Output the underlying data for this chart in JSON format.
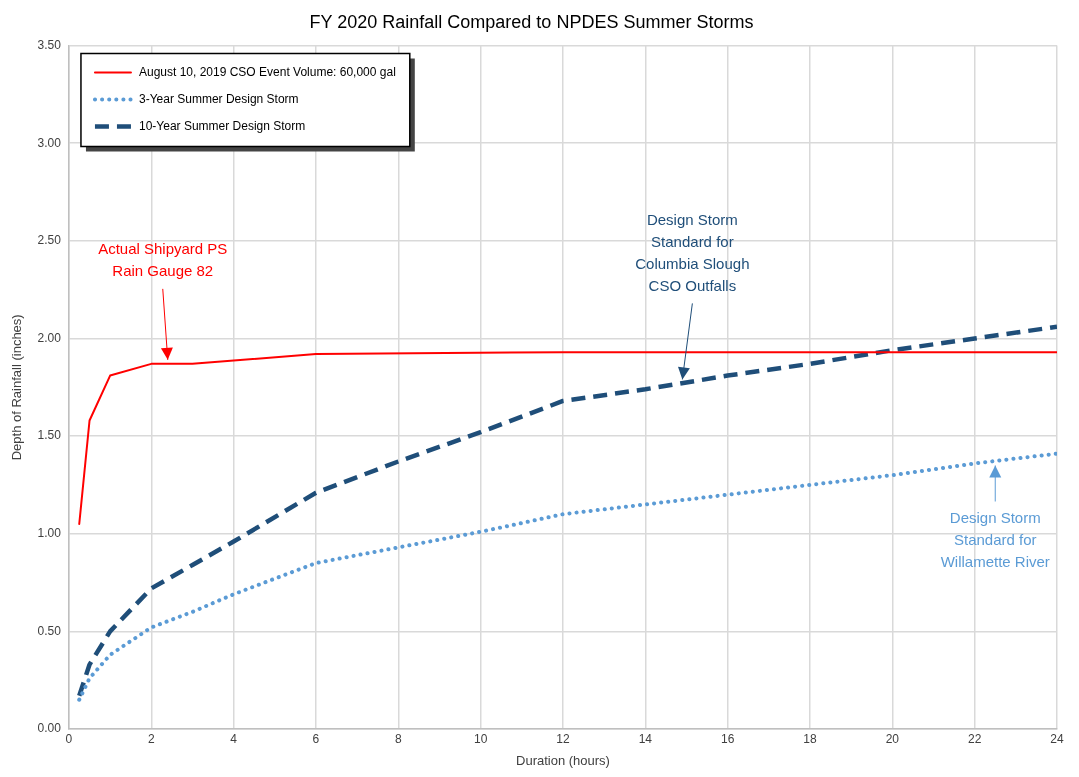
{
  "chart_data": {
    "type": "line",
    "title": "FY 2020 Rainfall Compared to NPDES Summer Storms",
    "xlabel": "Duration (hours)",
    "ylabel": "Depth of Rainfall (inches)",
    "xlim": [
      0,
      24
    ],
    "xticks": [
      0,
      2,
      4,
      6,
      8,
      10,
      12,
      14,
      16,
      18,
      20,
      22,
      24
    ],
    "ylim": [
      0,
      3.5
    ],
    "yticks": [
      {
        "value": 0,
        "label": "0.00"
      },
      {
        "value": 0.5,
        "label": "0.50"
      },
      {
        "value": 1,
        "label": "1.00"
      },
      {
        "value": 1.5,
        "label": "1.50"
      },
      {
        "value": 2,
        "label": "2.00"
      },
      {
        "value": 2.5,
        "label": "2.50"
      },
      {
        "value": 3,
        "label": "3.00"
      },
      {
        "value": 3.5,
        "label": "3.50"
      }
    ],
    "grid": true,
    "legend": "top left",
    "marker": "none",
    "series": [
      {
        "name": "August 10, 2019 CSO Event Volume: 60,000 gal",
        "color": "#ff0000",
        "line_style": "solid",
        "x": [
          0.25,
          0.5,
          1,
          2,
          3,
          6,
          12,
          24
        ],
        "values": [
          1.05,
          1.58,
          1.81,
          1.87,
          1.87,
          1.92,
          1.93,
          1.93
        ]
      },
      {
        "name": "3-Year Summer Design Storm",
        "color": "#5b9bd5",
        "line_style": "dotted",
        "x": [
          0.25,
          0.5,
          1,
          2,
          3,
          4,
          6,
          8,
          10,
          12,
          14,
          16,
          18,
          20,
          22,
          24
        ],
        "values": [
          0.15,
          0.26,
          0.38,
          0.52,
          0.6,
          0.69,
          0.85,
          0.93,
          1.01,
          1.1,
          1.15,
          1.2,
          1.25,
          1.3,
          1.36,
          1.41
        ]
      },
      {
        "name": "10-Year Summer Design Storm",
        "color": "#1f4e79",
        "line_style": "dashed",
        "x": [
          0.25,
          0.5,
          1,
          2,
          3,
          4,
          6,
          8,
          10,
          12,
          14,
          16,
          18,
          20,
          22,
          24
        ],
        "values": [
          0.17,
          0.33,
          0.5,
          0.72,
          0.84,
          0.96,
          1.21,
          1.37,
          1.52,
          1.68,
          1.74,
          1.81,
          1.87,
          1.94,
          2.0,
          2.06
        ]
      }
    ],
    "annotations": [
      {
        "text": "Actual Shipyard PS\nRain Gauge 82",
        "x": 2.4,
        "y": 1.87
      },
      {
        "text": "Design Storm\nStandard for\nColumbia Slough\nCSO Outfalls",
        "x": 14.9,
        "y": 1.77
      },
      {
        "text": "Design Storm\nStandard for\nWillamette River",
        "x": 22.5,
        "y": 1.37
      }
    ]
  }
}
